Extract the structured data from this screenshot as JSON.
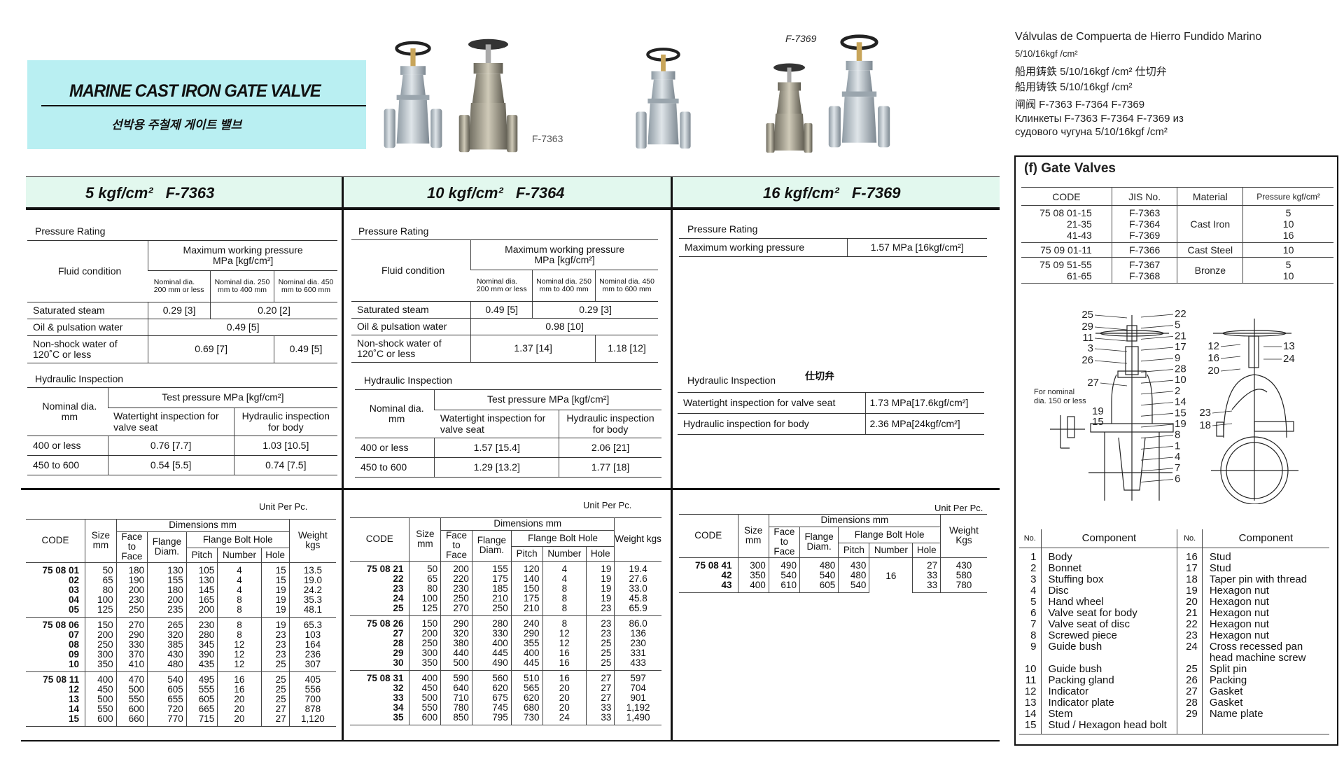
{
  "banner": {
    "title": "MARINE CAST IRON GATE VALVE",
    "subtitle_ko": "선박용 주철제 게이트 밸브"
  },
  "photos": {
    "label_a": "F-7363",
    "label_b": "F-7369"
  },
  "multilingual": [
    "Válvulas de Compuerta de Hierro Fundido Marino",
    "5/10/16kgf /cm²",
    "船用鋳鉄 5/10/16kgf /cm² 仕切弁",
    "船用铸铁 5/10/16kgf /cm²",
    "闸阀 F-7363 F-7364 F-7369",
    "Клинкеты F-7363 F-7364 F-7369 из",
    "судового чугуна 5/10/16kgf /cm²"
  ],
  "panels": [
    {
      "pressure": "5 kgf/cm²",
      "code": "F-7363"
    },
    {
      "pressure": "10 kgf/cm²",
      "code": "F-7364"
    },
    {
      "pressure": "16 kgf/cm²",
      "code": "F-7369"
    }
  ],
  "pressure_5": {
    "label": "Pressure Rating",
    "fluid_header": "Fluid condition",
    "max_header": [
      "Maximum working pressure",
      "MPa [kgf/cm²]"
    ],
    "nominal_headers": [
      "Nominal dia. 200 mm or less",
      "Nominal dia. 250 mm to 400 mm",
      "Nominal dia. 450 mm to 600 mm"
    ],
    "rows": [
      {
        "label": "Saturated steam",
        "cells": [
          {
            "v": "0.29 [3]",
            "span": 1
          },
          {
            "v": "0.20 [2]",
            "span": 2
          }
        ]
      },
      {
        "label": "Oil & pulsation water",
        "cells": [
          {
            "v": "0.49 [5]",
            "span": 3
          }
        ]
      },
      {
        "label": "Non-shock water of 120˚C or less",
        "cells": [
          {
            "v": "0.69 [7]",
            "span": 2
          },
          {
            "v": "0.49 [5]",
            "span": 1
          }
        ]
      }
    ]
  },
  "hydraulic_5": {
    "label": "Hydraulic Inspection",
    "nominal_header": "Nominal dia. mm",
    "test_header": "Test pressure MPa [kgf/cm²]",
    "sub_headers": [
      "Watertight inspection for valve seat",
      "Hydraulic inspection for body"
    ],
    "rows": [
      [
        "400 or less",
        "0.76 [7.7]",
        "1.03 [10.5]"
      ],
      [
        "450 to 600",
        "0.54 [5.5]",
        "0.74  [7.5]"
      ]
    ]
  },
  "pressure_10": {
    "label": "Pressure Rating",
    "fluid_header": "Fluid condition",
    "max_header": [
      "Maximum working pressure",
      "MPa [kgf/cm²]"
    ],
    "nominal_headers": [
      "Nominal dia. 200 mm or less",
      "Nominal dia. 250 mm to 400 mm",
      "Nominal dia. 450 mm to 600 mm"
    ],
    "rows": [
      {
        "label": "Saturated steam",
        "cells": [
          {
            "v": "0.49 [5]",
            "span": 1
          },
          {
            "v": "0.29 [3]",
            "span": 2
          }
        ]
      },
      {
        "label": "Oil & pulsation water",
        "cells": [
          {
            "v": "0.98 [10]",
            "span": 3
          }
        ]
      },
      {
        "label": "Non-shock water of 120˚C or less",
        "cells": [
          {
            "v": "1.37 [14]",
            "span": 2
          },
          {
            "v": "1.18 [12]",
            "span": 1
          }
        ]
      }
    ]
  },
  "hydraulic_10": {
    "label": "Hydraulic Inspection",
    "nominal_header": "Nominal dia. mm",
    "test_header": "Test pressure MPa [kgf/cm²]",
    "sub_headers": [
      "Watertight inspection for valve seat",
      "Hydraulic inspection for body"
    ],
    "rows": [
      [
        "400 or less",
        "1.57 [15.4]",
        "2.06 [21]"
      ],
      [
        "450 to 600",
        "1.29 [13.2]",
        "1.77 [18]"
      ]
    ]
  },
  "pressure_16": {
    "label": "Pressure Rating",
    "row_label": "Maximum working pressure",
    "value": "1.57 MPa [16kgf/cm²]"
  },
  "hydraulic_16": {
    "label": "Hydraulic Inspection",
    "note_ja": "仕切弁",
    "rows": [
      [
        "Watertight inspection for valve seat",
        "1.73  MPa[17.6kgf/cm²]"
      ],
      [
        "Hydraulic inspection for body",
        "2.36  MPa[24kgf/cm²]"
      ]
    ]
  },
  "dim_5": {
    "unit": "Unit Per Pc.",
    "headers": {
      "code": "CODE",
      "size": "Size mm",
      "dimensions": "Dimensions mm",
      "face": "Face to Face",
      "flange": "Flange Diam.",
      "bolt": "Flange Bolt Hole",
      "pitch": "Pitch",
      "number": "Number",
      "hole": "Hole",
      "weight": "Weight kgs"
    },
    "groups": [
      [
        [
          "75 08 01",
          "50",
          "180",
          "130",
          "105",
          "4",
          "15",
          "13.5"
        ],
        [
          "02",
          "65",
          "190",
          "155",
          "130",
          "4",
          "15",
          "19.0"
        ],
        [
          "03",
          "80",
          "200",
          "180",
          "145",
          "4",
          "19",
          "24.2"
        ],
        [
          "04",
          "100",
          "230",
          "200",
          "165",
          "8",
          "19",
          "35.3"
        ],
        [
          "05",
          "125",
          "250",
          "235",
          "200",
          "8",
          "19",
          "48.1"
        ]
      ],
      [
        [
          "75 08 06",
          "150",
          "270",
          "265",
          "230",
          "8",
          "19",
          "65.3"
        ],
        [
          "07",
          "200",
          "290",
          "320",
          "280",
          "8",
          "23",
          "103"
        ],
        [
          "08",
          "250",
          "330",
          "385",
          "345",
          "12",
          "23",
          "164"
        ],
        [
          "09",
          "300",
          "370",
          "430",
          "390",
          "12",
          "23",
          "236"
        ],
        [
          "10",
          "350",
          "410",
          "480",
          "435",
          "12",
          "25",
          "307"
        ]
      ],
      [
        [
          "75 08 11",
          "400",
          "470",
          "540",
          "495",
          "16",
          "25",
          "405"
        ],
        [
          "12",
          "450",
          "500",
          "605",
          "555",
          "16",
          "25",
          "556"
        ],
        [
          "13",
          "500",
          "550",
          "655",
          "605",
          "20",
          "25",
          "700"
        ],
        [
          "14",
          "550",
          "600",
          "720",
          "665",
          "20",
          "27",
          "878"
        ],
        [
          "15",
          "600",
          "660",
          "770",
          "715",
          "20",
          "27",
          "1,120"
        ]
      ]
    ]
  },
  "dim_10": {
    "unit": "Unit Per Pc.",
    "headers": {
      "code": "CODE",
      "size": "Size mm",
      "dimensions": "Dimensions mm",
      "face": "Face to Face",
      "flange": "Flange Diam.",
      "bolt": "Flange Bolt Hole",
      "pitch": "Pitch",
      "number": "Number",
      "hole": "Hole",
      "weight": "Weight kgs"
    },
    "groups": [
      [
        [
          "75 08 21",
          "50",
          "200",
          "155",
          "120",
          "4",
          "19",
          "19.4"
        ],
        [
          "22",
          "65",
          "220",
          "175",
          "140",
          "4",
          "19",
          "27.6"
        ],
        [
          "23",
          "80",
          "230",
          "185",
          "150",
          "8",
          "19",
          "33.0"
        ],
        [
          "24",
          "100",
          "250",
          "210",
          "175",
          "8",
          "19",
          "45.8"
        ],
        [
          "25",
          "125",
          "270",
          "250",
          "210",
          "8",
          "23",
          "65.9"
        ]
      ],
      [
        [
          "75 08 26",
          "150",
          "290",
          "280",
          "240",
          "8",
          "23",
          "86.0"
        ],
        [
          "27",
          "200",
          "320",
          "330",
          "290",
          "12",
          "23",
          "136"
        ],
        [
          "28",
          "250",
          "380",
          "400",
          "355",
          "12",
          "25",
          "230"
        ],
        [
          "29",
          "300",
          "440",
          "445",
          "400",
          "16",
          "25",
          "331"
        ],
        [
          "30",
          "350",
          "500",
          "490",
          "445",
          "16",
          "25",
          "433"
        ]
      ],
      [
        [
          "75 08 31",
          "400",
          "590",
          "560",
          "510",
          "16",
          "27",
          "597"
        ],
        [
          "32",
          "450",
          "640",
          "620",
          "565",
          "20",
          "27",
          "704"
        ],
        [
          "33",
          "500",
          "710",
          "675",
          "620",
          "20",
          "27",
          "901"
        ],
        [
          "34",
          "550",
          "780",
          "745",
          "680",
          "20",
          "33",
          "1,192"
        ],
        [
          "35",
          "600",
          "850",
          "795",
          "730",
          "24",
          "33",
          "1,490"
        ]
      ]
    ]
  },
  "dim_16": {
    "unit": "Unit Per Pc.",
    "headers": {
      "code": "CODE",
      "size": "Size mm",
      "dimensions": "Dimensions mm",
      "face": "Face to Face",
      "flange": "Flange Diam.",
      "bolt": "Flange Bolt Hole",
      "pitch": "Pitch",
      "number": "Number",
      "hole": "Hole",
      "weight": "Weight Kgs"
    },
    "groups": [
      [
        [
          "75 08 41",
          "300",
          "490",
          "480",
          "430",
          "16",
          "27",
          "430"
        ],
        [
          "42",
          "350",
          "540",
          "540",
          "480",
          null,
          "33",
          "580"
        ],
        [
          "43",
          "400",
          "610",
          "605",
          "540",
          null,
          "33",
          "780"
        ]
      ]
    ]
  },
  "gate_valves": {
    "title": "(f)  Gate Valves",
    "headers": [
      "CODE",
      "JIS No.",
      "Material",
      "Pressure  kgf/cm²"
    ],
    "rows": [
      {
        "codes": [
          "75 08 01-15",
          "21-35",
          "41-43"
        ],
        "jis": [
          "F-7363",
          "F-7364",
          "F-7369"
        ],
        "material": "Cast Iron",
        "pressure": [
          "5",
          "10",
          "16"
        ]
      },
      {
        "codes": [
          "75 09 01-11"
        ],
        "jis": [
          "F-7366"
        ],
        "material": "Cast Steel",
        "pressure": [
          "10"
        ]
      },
      {
        "codes": [
          "75 09 51-55",
          "61-65"
        ],
        "jis": [
          "F-7367",
          "F-7368"
        ],
        "material": "Bronze",
        "pressure": [
          "5",
          "10"
        ]
      }
    ]
  },
  "diagram": {
    "left_labels": [
      "25",
      "29",
      "11",
      "3",
      "26",
      "27"
    ],
    "right_labels": [
      "22",
      "5",
      "21",
      "17",
      "9",
      "28",
      "10",
      "2",
      "14",
      "15",
      "19",
      "8",
      "1",
      "4",
      "7",
      "6"
    ],
    "detail_note": [
      "For nominal",
      "dia. 150 or less"
    ],
    "detail_labels": [
      "19",
      "15"
    ],
    "side_left_labels": [
      "12",
      "16",
      "20",
      "23",
      "18"
    ],
    "side_right_labels": [
      "13",
      "24"
    ]
  },
  "components": {
    "headers": [
      "No.",
      "Component",
      "No.",
      "Component"
    ],
    "left": [
      [
        "1",
        "Body"
      ],
      [
        "2",
        "Bonnet"
      ],
      [
        "3",
        "Stuffing box"
      ],
      [
        "4",
        "Disc"
      ],
      [
        "5",
        "Hand wheel"
      ],
      [
        "6",
        "Valve seat for body"
      ],
      [
        "7",
        "Valve seat of disc"
      ],
      [
        "8",
        "Screwed piece"
      ],
      [
        "9",
        "Guide bush"
      ],
      [
        "10",
        "Guide bush"
      ],
      [
        "11",
        "Packing gland"
      ],
      [
        "12",
        "Indicator"
      ],
      [
        "13",
        "Indicator plate"
      ],
      [
        "14",
        "Stem"
      ],
      [
        "15",
        "Stud / Hexagon head bolt"
      ]
    ],
    "right": [
      [
        "16",
        "Stud"
      ],
      [
        "17",
        "Stud"
      ],
      [
        "18",
        "Taper pin with thread"
      ],
      [
        "19",
        "Hexagon nut"
      ],
      [
        "20",
        "Hexagon nut"
      ],
      [
        "21",
        "Hexagon nut"
      ],
      [
        "22",
        "Hexagon nut"
      ],
      [
        "23",
        "Hexagon nut"
      ],
      [
        "24",
        "Cross recessed pan head machine screw"
      ],
      [
        "25",
        "Split pin"
      ],
      [
        "26",
        "Packing"
      ],
      [
        "27",
        "Gasket"
      ],
      [
        "28",
        "Gasket"
      ],
      [
        "29",
        "Name plate"
      ]
    ]
  },
  "colors": {
    "banner": "#b9eff2",
    "band": "#e2f8ee"
  }
}
